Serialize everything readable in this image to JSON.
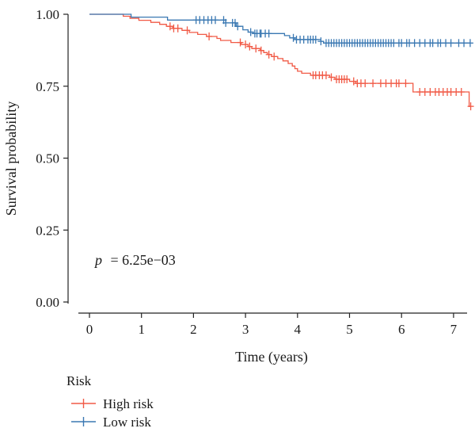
{
  "chart_data": {
    "type": "line",
    "subtype": "kaplan-meier",
    "title": "",
    "xlabel": "Time (years)",
    "ylabel": "Survival probability",
    "xlim": [
      0,
      7.35
    ],
    "ylim": [
      0,
      1.0
    ],
    "x_ticks": [
      0,
      1,
      2,
      3,
      4,
      5,
      6,
      7
    ],
    "x_tick_labels": [
      "0",
      "1",
      "2",
      "3",
      "4",
      "5",
      "6",
      "7"
    ],
    "y_ticks": [
      0,
      0.25,
      0.5,
      0.75,
      1.0
    ],
    "y_tick_labels": [
      "0.00",
      "0.25",
      "0.50",
      "0.75",
      "1.00"
    ],
    "grid": false,
    "legend": {
      "title": "Risk",
      "position": "bottom-left"
    },
    "annotation": {
      "p_symbol": "p",
      "p_text": "= 6.25e−03"
    },
    "series": [
      {
        "name": "High risk",
        "color": "#f15a46",
        "steps": [
          [
            0,
            1.0
          ],
          [
            0.65,
            0.993
          ],
          [
            0.78,
            0.986
          ],
          [
            0.95,
            0.979
          ],
          [
            1.18,
            0.972
          ],
          [
            1.35,
            0.965
          ],
          [
            1.48,
            0.958
          ],
          [
            1.6,
            0.951
          ],
          [
            1.78,
            0.944
          ],
          [
            1.92,
            0.937
          ],
          [
            2.08,
            0.93
          ],
          [
            2.25,
            0.923
          ],
          [
            2.45,
            0.916
          ],
          [
            2.52,
            0.909
          ],
          [
            2.72,
            0.902
          ],
          [
            2.92,
            0.895
          ],
          [
            3.05,
            0.888
          ],
          [
            3.12,
            0.881
          ],
          [
            3.28,
            0.874
          ],
          [
            3.35,
            0.867
          ],
          [
            3.42,
            0.86
          ],
          [
            3.5,
            0.853
          ],
          [
            3.62,
            0.846
          ],
          [
            3.72,
            0.838
          ],
          [
            3.82,
            0.829
          ],
          [
            3.9,
            0.82
          ],
          [
            3.95,
            0.811
          ],
          [
            4.0,
            0.802
          ],
          [
            4.08,
            0.795
          ],
          [
            4.25,
            0.788
          ],
          [
            4.62,
            0.781
          ],
          [
            4.72,
            0.774
          ],
          [
            5.0,
            0.767
          ],
          [
            5.12,
            0.76
          ],
          [
            6.22,
            0.73
          ],
          [
            7.3,
            0.68
          ]
        ],
        "censors": [
          1.55,
          1.62,
          1.7,
          1.88,
          2.3,
          2.9,
          3.0,
          3.08,
          3.2,
          3.3,
          3.45,
          3.55,
          4.3,
          4.35,
          4.42,
          4.48,
          4.55,
          4.65,
          4.75,
          4.8,
          4.85,
          4.9,
          4.95,
          5.08,
          5.15,
          5.22,
          5.3,
          5.45,
          5.6,
          5.7,
          5.8,
          5.9,
          5.95,
          6.08,
          6.35,
          6.45,
          6.55,
          6.65,
          6.72,
          6.8,
          6.88,
          6.95,
          7.05,
          7.15,
          7.33
        ]
      },
      {
        "name": "Low risk",
        "color": "#3a78b2",
        "steps": [
          [
            0,
            1.0
          ],
          [
            0.8,
            0.99
          ],
          [
            1.5,
            0.98
          ],
          [
            2.62,
            0.97
          ],
          [
            2.82,
            0.958
          ],
          [
            2.95,
            0.946
          ],
          [
            3.05,
            0.938
          ],
          [
            3.15,
            0.933
          ],
          [
            3.75,
            0.926
          ],
          [
            3.85,
            0.918
          ],
          [
            3.95,
            0.912
          ],
          [
            4.45,
            0.906
          ],
          [
            4.5,
            0.9
          ]
        ],
        "censors": [
          2.05,
          2.12,
          2.2,
          2.28,
          2.35,
          2.42,
          2.58,
          2.62,
          2.75,
          2.8,
          2.85,
          3.1,
          3.18,
          3.22,
          3.28,
          3.3,
          3.38,
          3.45,
          3.92,
          3.98,
          4.05,
          4.12,
          4.2,
          4.25,
          4.3,
          4.35,
          4.45,
          4.55,
          4.6,
          4.65,
          4.7,
          4.75,
          4.8,
          4.85,
          4.9,
          4.95,
          5.0,
          5.05,
          5.1,
          5.15,
          5.2,
          5.25,
          5.3,
          5.35,
          5.4,
          5.45,
          5.5,
          5.55,
          5.6,
          5.65,
          5.7,
          5.75,
          5.8,
          5.85,
          5.95,
          6.0,
          6.1,
          6.15,
          6.25,
          6.35,
          6.45,
          6.55,
          6.6,
          6.7,
          6.75,
          6.85,
          6.95,
          7.1,
          7.2,
          7.32
        ]
      }
    ]
  }
}
